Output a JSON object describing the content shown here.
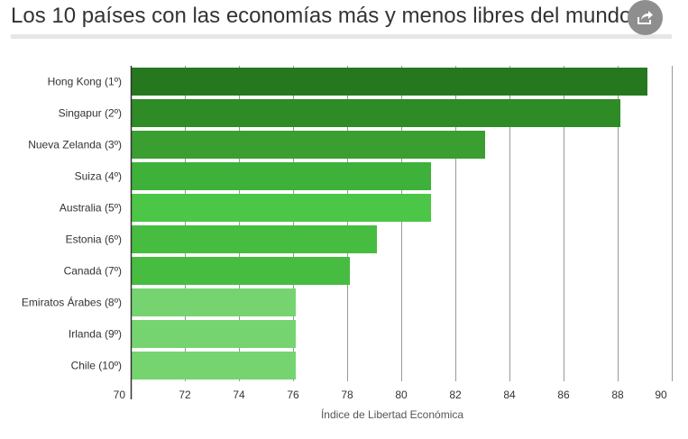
{
  "header": {
    "title": "Los 10 países con las economías más y menos libres del mundo",
    "share_icon": "share-icon"
  },
  "colors": {
    "dark_green": "#26781f",
    "medium_green": "#2e8b25",
    "green": "#3db13a",
    "light_green": "#4cc646",
    "pale_green": "#76d470",
    "grid": "#999999",
    "axis": "#333333"
  },
  "chart_data": {
    "type": "bar",
    "orientation": "horizontal",
    "categories": [
      "Hong Kong (1º)",
      "Singapur (2º)",
      "Nueva Zelanda (3º)",
      "Suiza (4º)",
      "Australia (5º)",
      "Estonia (6º)",
      "Canadá (7º)",
      "Emiratos Árabes (8º)",
      "Irlanda (9º)",
      "Chile (10º)"
    ],
    "values": [
      89.1,
      88.1,
      83.1,
      81.1,
      81.1,
      79.1,
      78.1,
      76.1,
      76.1,
      76.1
    ],
    "bar_colors": [
      "#26781f",
      "#2e8b25",
      "#3a9e31",
      "#3db13a",
      "#4cc646",
      "#46bd40",
      "#46bd40",
      "#76d470",
      "#76d470",
      "#76d470"
    ],
    "title": "Los 10 países con las economías más y menos libres del mundo",
    "xlabel": "Índice de Libertad Económica",
    "ylabel": "",
    "xlim": [
      70,
      90
    ],
    "x_ticks": [
      "70",
      "72",
      "74",
      "76",
      "78",
      "80",
      "82",
      "84",
      "86",
      "88",
      "90"
    ],
    "grid": true,
    "legend": "none"
  }
}
